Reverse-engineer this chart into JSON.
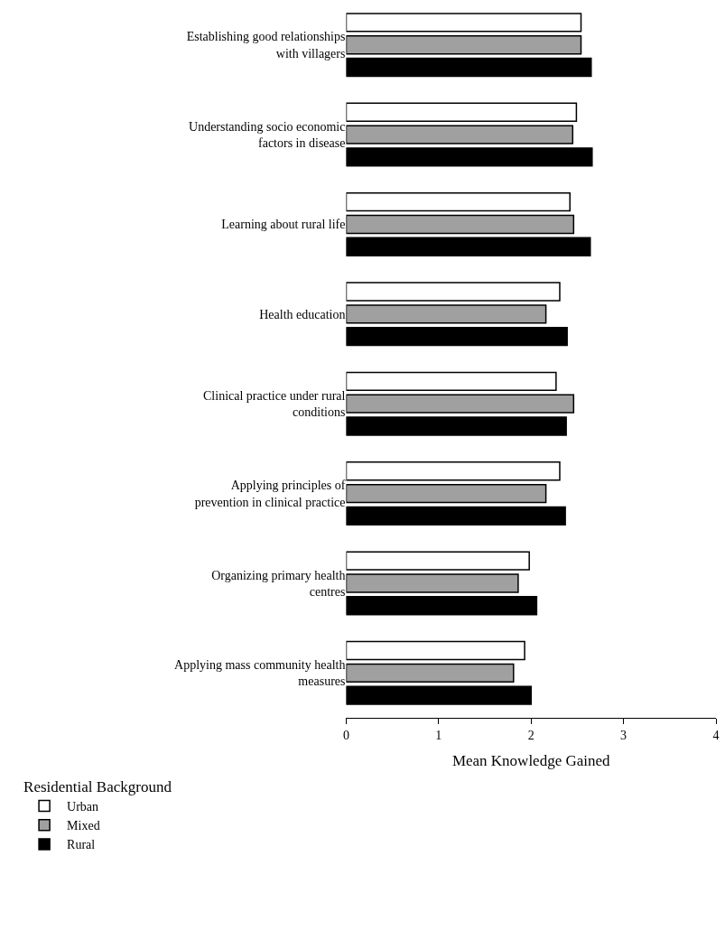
{
  "chart_data": {
    "type": "bar",
    "orientation": "horizontal",
    "categories": [
      "Establishing good relationships with villagers",
      "Understanding socio economic factors in disease",
      "Learning about rural life",
      "Health education",
      "Clinical practice under rural conditions",
      "Applying principles of prevention in clinical practice",
      "Organizing primary health centres",
      "Applying mass community health measures"
    ],
    "series": [
      {
        "name": "Urban",
        "color": "#ffffff",
        "values": [
          2.54,
          2.49,
          2.42,
          2.31,
          2.27,
          2.31,
          1.98,
          1.93
        ]
      },
      {
        "name": "Mixed",
        "color": "#a0a0a0",
        "values": [
          2.54,
          2.45,
          2.46,
          2.16,
          2.46,
          2.16,
          1.86,
          1.81
        ]
      },
      {
        "name": "Rural",
        "color": "#000000",
        "values": [
          2.65,
          2.66,
          2.64,
          2.39,
          2.38,
          2.37,
          2.06,
          2.0
        ]
      }
    ],
    "xlabel": "Mean Knowledge Gained",
    "xlim": [
      0,
      4
    ],
    "xticks": [
      0,
      1,
      2,
      3,
      4
    ],
    "legend_title": "Residential Background",
    "legend": "bottom left"
  }
}
